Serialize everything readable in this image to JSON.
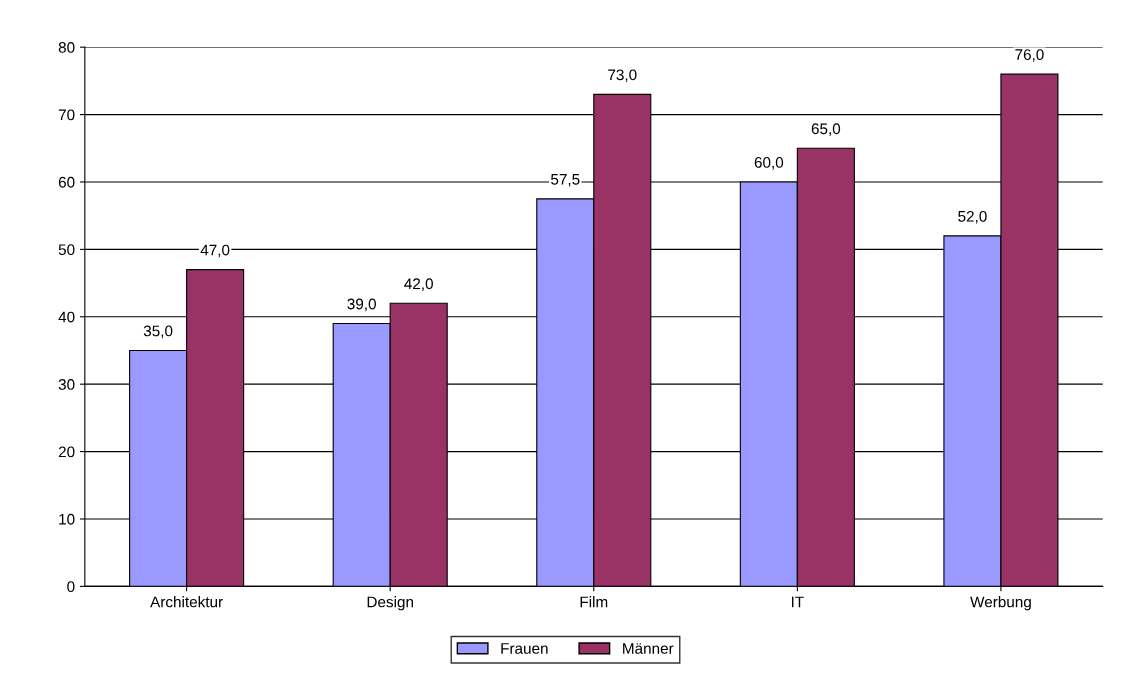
{
  "chart_data": {
    "type": "bar",
    "categories": [
      "Architektur",
      "Design",
      "Film",
      "IT",
      "Werbung"
    ],
    "series": [
      {
        "name": "Frauen",
        "color": "#9999ff",
        "values": [
          35.0,
          39.0,
          57.5,
          60.0,
          52.0
        ],
        "value_labels": [
          "35,0",
          "39,0",
          "57,5",
          "60,0",
          "52,0"
        ]
      },
      {
        "name": "Männer",
        "color": "#993366",
        "values": [
          47.0,
          42.0,
          73.0,
          65.0,
          76.0
        ],
        "value_labels": [
          "47,0",
          "42,0",
          "73,0",
          "65,0",
          "76,0"
        ]
      }
    ],
    "ylim": [
      0,
      80
    ],
    "yticks": [
      0,
      10,
      20,
      30,
      40,
      50,
      60,
      70,
      80
    ],
    "grid": "y",
    "legend": "bottom"
  }
}
